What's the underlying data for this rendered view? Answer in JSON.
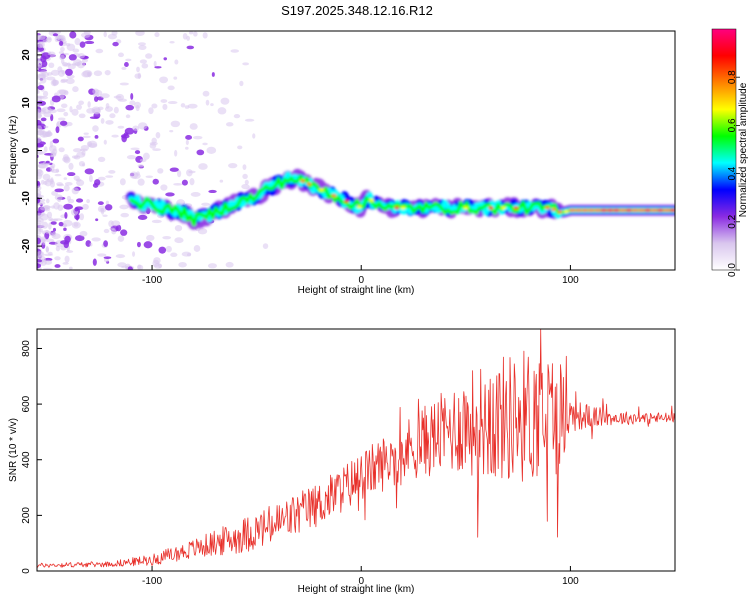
{
  "title": "S197.2025.348.12.16.R12",
  "chart_data": [
    {
      "type": "heatmap",
      "name": "spectrogram",
      "xlabel": "Height of straight line (km)",
      "ylabel": "Frequency (Hz)",
      "xlim": [
        -155,
        150
      ],
      "ylim": [
        -25,
        25
      ],
      "xticks": [
        -100,
        0,
        100
      ],
      "xtick_labels": [
        "-100",
        "0",
        "100"
      ],
      "yticks": [
        20,
        10,
        0,
        -10,
        -20
      ],
      "ytick_labels": [
        "20",
        "10",
        "0",
        "-10",
        "-20"
      ],
      "ridge_x": [
        -155,
        -120,
        -105,
        -95,
        -85,
        -80,
        -75,
        -68,
        -60,
        -50,
        -45,
        -40,
        -35,
        -30,
        -25,
        -20,
        -15,
        -10,
        -5,
        0,
        3,
        8,
        12,
        20,
        30,
        40,
        50,
        60,
        70,
        80,
        90,
        96,
        100,
        110,
        130,
        150
      ],
      "ridge_y": [
        -12,
        -9,
        -11,
        -12,
        -13,
        -14.5,
        -14,
        -12.5,
        -11,
        -9.5,
        -8,
        -7,
        -6,
        -6,
        -7,
        -8,
        -9,
        -10,
        -11,
        -12,
        -10,
        -11,
        -12,
        -12,
        -12,
        -12,
        -12,
        -12,
        -12,
        -12,
        -12,
        -13,
        -12.5,
        -12.5,
        -12.5,
        -12.5
      ],
      "colorbar": {
        "label": "Normalized spectral amplitude",
        "ticks": [
          0.0,
          0.2,
          0.4,
          0.6,
          0.8
        ],
        "tick_labels": [
          "0.0",
          "0.2",
          "0.4",
          "0.6",
          "0.8"
        ],
        "range": [
          0,
          1
        ],
        "colors": [
          "#d9c6ee",
          "#8a2be2",
          "#0000ff",
          "#00ffff",
          "#00ff00",
          "#ffff00",
          "#ff8000",
          "#ff0000",
          "#ff007f"
        ]
      }
    },
    {
      "type": "line",
      "name": "snr",
      "xlabel": "Height of straight line (km)",
      "ylabel": "SNR (10 * v/v)",
      "xlim": [
        -155,
        150
      ],
      "ylim": [
        0,
        870
      ],
      "xticks": [
        -100,
        0,
        100
      ],
      "xtick_labels": [
        "-100",
        "0",
        "100"
      ],
      "yticks": [
        0,
        200,
        400,
        600,
        800
      ],
      "ytick_labels": [
        "0",
        "200",
        "400",
        "600",
        "800"
      ],
      "line_color": "#e8302a",
      "trend_x": [
        -155,
        -120,
        -100,
        -80,
        -60,
        -40,
        -20,
        0,
        20,
        40,
        50,
        60,
        80,
        90,
        100,
        120,
        150
      ],
      "trend_y": [
        20,
        25,
        40,
        80,
        120,
        170,
        240,
        340,
        430,
        500,
        530,
        540,
        560,
        570,
        560,
        550,
        550
      ],
      "noise_x": [
        -155,
        -120,
        -100,
        -80,
        -60,
        -40,
        -20,
        0,
        20,
        40,
        60,
        80,
        95,
        100,
        120,
        150
      ],
      "noise_amp": [
        8,
        10,
        20,
        35,
        60,
        80,
        80,
        90,
        110,
        150,
        220,
        250,
        220,
        60,
        25,
        20
      ]
    }
  ]
}
